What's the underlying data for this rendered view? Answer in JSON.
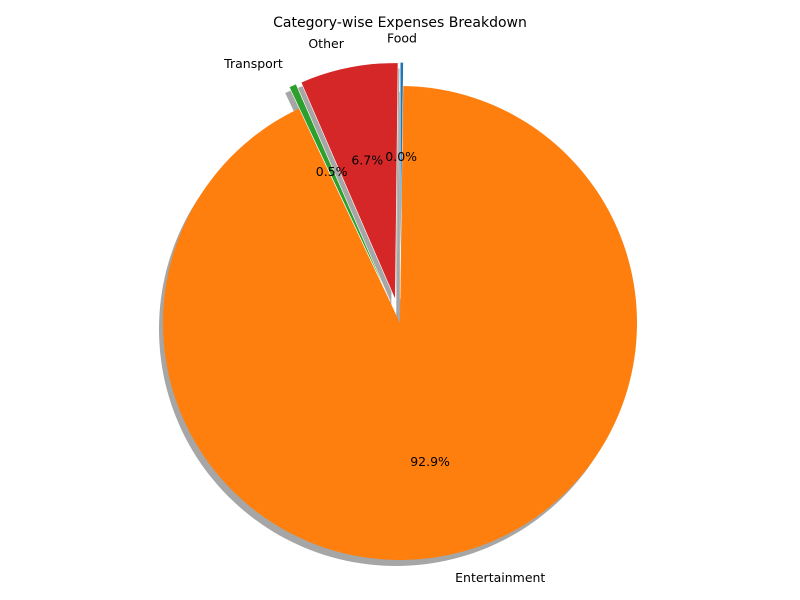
{
  "chart_data": {
    "type": "pie",
    "title": "Category-wise Expenses Breakdown",
    "start_angle_deg": 90,
    "direction": "clockwise",
    "shadow": true,
    "slices": [
      {
        "label": "Food",
        "percent_label": "0.0%",
        "value": 0.04,
        "color": "#1f77b4",
        "explode": 0.1
      },
      {
        "label": "Entertainment",
        "percent_label": "92.9%",
        "value": 92.9,
        "color": "#ff7f0e",
        "explode": 0.0
      },
      {
        "label": "Transport",
        "percent_label": "0.5%",
        "value": 0.5,
        "color": "#2ca02c",
        "explode": 0.1
      },
      {
        "label": "Other",
        "percent_label": "6.7%",
        "value": 6.7,
        "color": "#d62728",
        "explode": 0.1
      }
    ]
  }
}
